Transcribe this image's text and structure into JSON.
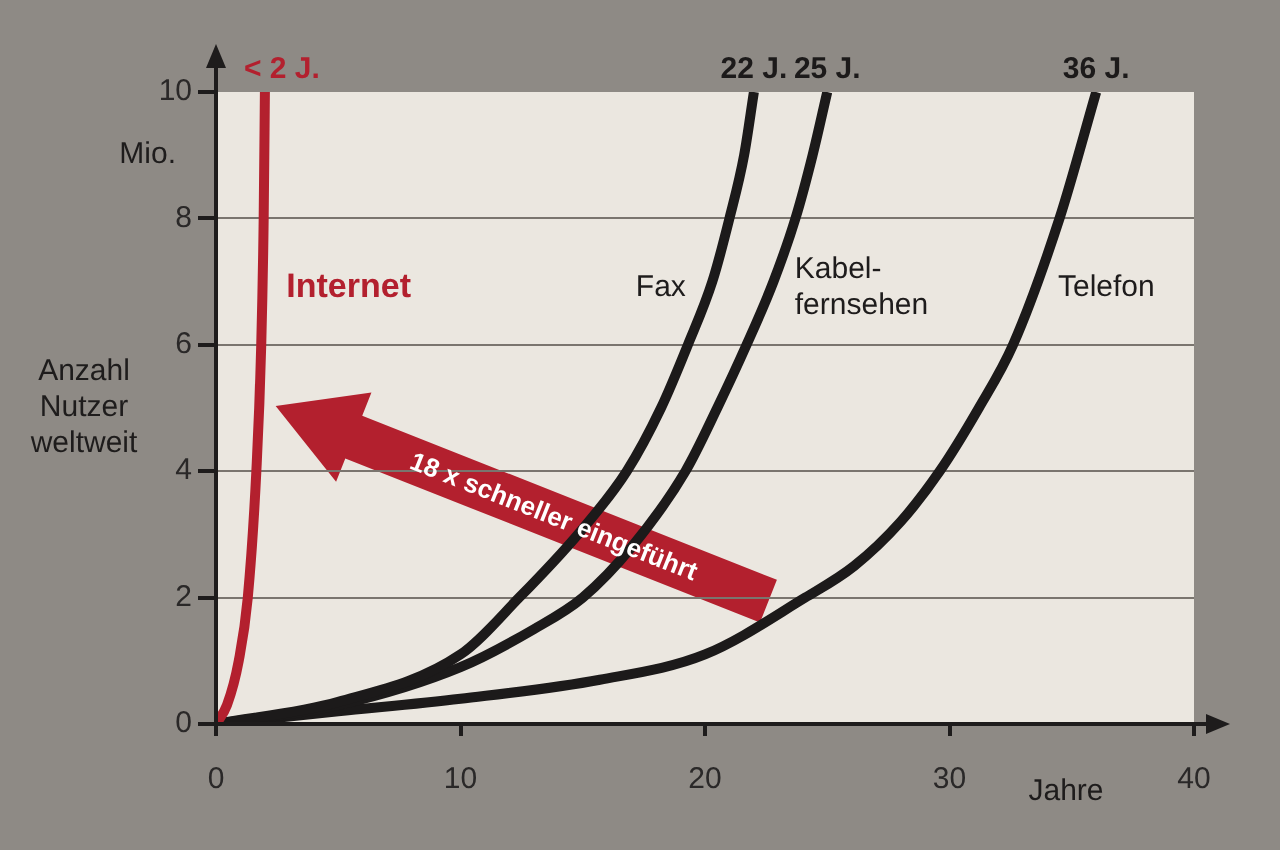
{
  "chart_data": {
    "type": "line",
    "xlabel": "Jahre",
    "ylabel": "Anzahl\nNutzer\nweltweit",
    "xlim": [
      0,
      40
    ],
    "xticks": [
      0,
      10,
      20,
      30,
      40
    ],
    "ylim": [
      0,
      10
    ],
    "yticks": [
      0,
      2,
      4,
      6,
      8,
      10
    ],
    "grid": "y",
    "series": [
      {
        "name": "Internet",
        "color": "#b3202e",
        "x": [
          0,
          0.45,
          0.93,
          1.3,
          1.65,
          1.85,
          1.95,
          2
        ],
        "values": [
          0,
          0.3,
          1,
          2,
          4,
          6,
          8,
          10
        ]
      },
      {
        "name": "Fax",
        "color": "#1c1a1a",
        "x": [
          0,
          5,
          10,
          12.4,
          14.8,
          16.8,
          18.2,
          19.3,
          20.3,
          21,
          21.6,
          22
        ],
        "values": [
          0,
          0.35,
          1.1,
          2,
          3,
          4,
          5,
          6,
          7,
          8,
          9,
          10
        ]
      },
      {
        "name": "Kabel-\nfernsehen",
        "color": "#1c1a1a",
        "x": [
          0,
          5,
          10,
          13,
          15,
          17,
          19.2,
          20.5,
          21.7,
          22.8,
          23.7,
          24.4,
          25
        ],
        "values": [
          0,
          0.3,
          0.9,
          1.5,
          2,
          2.8,
          4,
          5,
          6,
          7,
          8,
          9,
          10
        ]
      },
      {
        "name": "Telefon",
        "color": "#1c1a1a",
        "x": [
          0,
          5,
          10,
          15.7,
          20,
          24.1,
          26.1,
          28,
          29.6,
          31.2,
          32.6,
          34.5,
          36
        ],
        "values": [
          0,
          0.2,
          0.4,
          0.7,
          1.1,
          2,
          2.5,
          3.2,
          4,
          5,
          6,
          8,
          10
        ]
      }
    ],
    "annotations": [
      "Mio.",
      "18 x schneller eingeführt",
      {
        "text": "< 2 J.",
        "x": 2,
        "y": 10
      },
      {
        "text": "22 J.",
        "x": 22,
        "y": 10
      },
      {
        "text": "25 J.",
        "x": 25,
        "y": 10
      },
      {
        "text": "36 J.",
        "x": 36,
        "y": 10
      }
    ]
  }
}
